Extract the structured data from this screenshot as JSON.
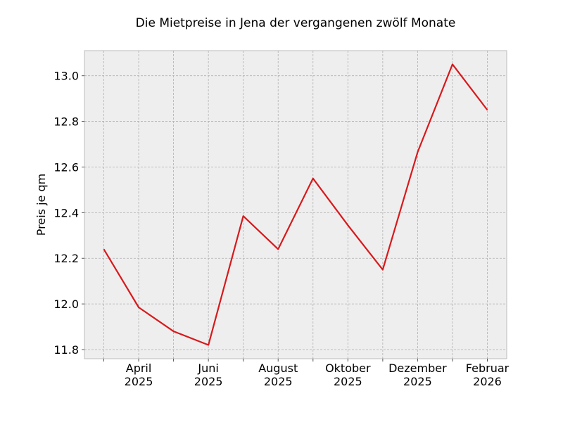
{
  "chart_data": {
    "type": "line",
    "title": "Die Mietpreise in Jena der vergangenen zwölf Monate",
    "y_label": "Preis je qm",
    "categories": [
      null,
      "April\n2025",
      null,
      "Juni\n2025",
      null,
      "August\n2025",
      null,
      "Oktober\n2025",
      null,
      "Dezember\n2025",
      null,
      "Februar\n2026"
    ],
    "series": [
      {
        "color": "#d7191c",
        "values": [
          12.24,
          11.985,
          11.88,
          11.82,
          12.385,
          12.24,
          12.55,
          12.345,
          12.15,
          12.665,
          13.05,
          12.85
        ]
      }
    ],
    "ylim": [
      11.76,
      13.11
    ],
    "yticks": [
      11.8,
      {
        "value": 12.0,
        "label": "12.0"
      },
      12.2,
      12.4,
      12.6,
      12.8,
      {
        "value": 13.0,
        "label": "13.0"
      }
    ],
    "grid": true
  }
}
